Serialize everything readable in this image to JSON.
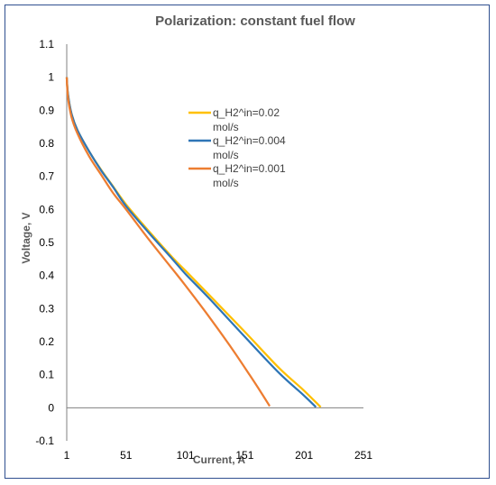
{
  "chart_data": {
    "type": "line",
    "title": "Polarization: constant fuel flow",
    "xlabel": "Current, A",
    "ylabel": "Voltage, V",
    "xlim": [
      1,
      251
    ],
    "ylim": [
      -0.1,
      1.1
    ],
    "x_ticks": [
      "1",
      "51",
      "101",
      "151",
      "201",
      "251"
    ],
    "y_ticks": [
      "-0.1",
      "0",
      "0.1",
      "0.2",
      "0.3",
      "0.4",
      "0.5",
      "0.6",
      "0.7",
      "0.8",
      "0.9",
      "1",
      "1.1"
    ],
    "grid": "none",
    "legend_position": "top-right",
    "series": [
      {
        "name": "q_H2^in=0.02 mol/s",
        "color": "#FFC000",
        "x": [
          1,
          2,
          5,
          10,
          20,
          30,
          40,
          51,
          70,
          90,
          101,
          120,
          151,
          180,
          200,
          215
        ],
        "y": [
          1.0,
          0.95,
          0.89,
          0.84,
          0.775,
          0.72,
          0.67,
          0.615,
          0.535,
          0.455,
          0.415,
          0.345,
          0.23,
          0.12,
          0.055,
          0.002
        ]
      },
      {
        "name": "q_H2^in=0.004 mol/s",
        "color": "#2E75B6",
        "x": [
          1,
          2,
          5,
          10,
          20,
          30,
          40,
          51,
          70,
          90,
          101,
          120,
          151,
          180,
          200,
          211
        ],
        "y": [
          1.0,
          0.95,
          0.89,
          0.84,
          0.775,
          0.718,
          0.668,
          0.61,
          0.53,
          0.45,
          0.405,
          0.335,
          0.215,
          0.105,
          0.04,
          0.002
        ]
      },
      {
        "name": "q_H2^in=0.001 mol/s",
        "color": "#ED7D31",
        "x": [
          1,
          2,
          5,
          10,
          20,
          30,
          40,
          51,
          70,
          90,
          101,
          120,
          140,
          155,
          165,
          172
        ],
        "y": [
          1.0,
          0.94,
          0.88,
          0.83,
          0.76,
          0.705,
          0.65,
          0.6,
          0.51,
          0.42,
          0.37,
          0.28,
          0.18,
          0.1,
          0.045,
          0.005
        ]
      }
    ]
  }
}
